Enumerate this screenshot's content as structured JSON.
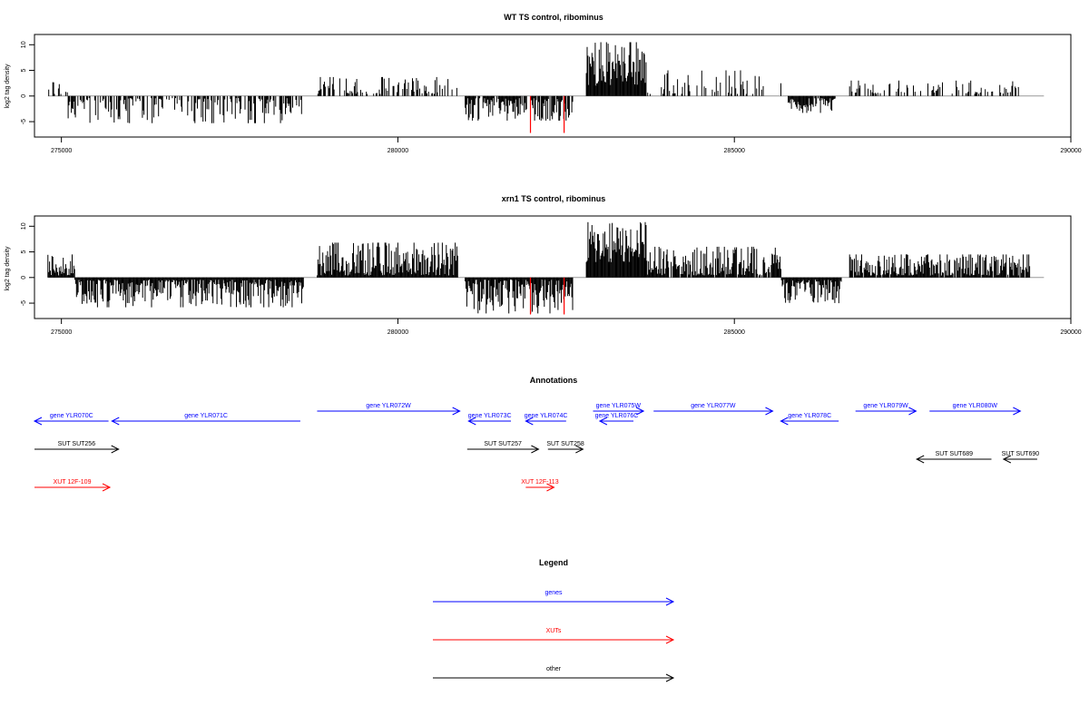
{
  "chart_data": [
    {
      "type": "bar",
      "title": "WT TS control, ribominus",
      "ylabel": "log2 tag density",
      "xlim": [
        274600,
        290000
      ],
      "ylim": [
        -8,
        12
      ],
      "x_ticks": [
        275000,
        280000,
        285000,
        290000
      ],
      "y_ticks": [
        -5,
        0,
        5,
        10
      ],
      "series_regions": [
        {
          "name": "plus",
          "start": 274800,
          "end": 275100,
          "max": 2.7,
          "density": 0.5
        },
        {
          "name": "minus",
          "start": 275100,
          "end": 278600,
          "max": -5.3,
          "density": 0.55
        },
        {
          "name": "plus",
          "start": 278800,
          "end": 280900,
          "max": 3.7,
          "density": 0.5
        },
        {
          "name": "minus",
          "start": 281000,
          "end": 282600,
          "max": -4.8,
          "density": 0.8
        },
        {
          "name": "plus",
          "start": 282800,
          "end": 283700,
          "max": 10.5,
          "density": 1.0,
          "min": 2
        },
        {
          "name": "plus",
          "start": 283700,
          "end": 285700,
          "max": 5.0,
          "density": 0.35
        },
        {
          "name": "minus",
          "start": 285800,
          "end": 286500,
          "max": -3.3,
          "density": 0.9
        },
        {
          "name": "plus",
          "start": 286700,
          "end": 289300,
          "max": 3.0,
          "density": 0.35
        }
      ],
      "highlights": [
        {
          "x": 281970,
          "y": -7.2,
          "color": "#ff0000"
        },
        {
          "x": 282470,
          "y": -7.2,
          "color": "#ff0000"
        }
      ]
    },
    {
      "type": "bar",
      "title": "xrn1 TS control, ribominus",
      "ylabel": "log2 tag density",
      "xlim": [
        274600,
        290000
      ],
      "ylim": [
        -8,
        12
      ],
      "x_ticks": [
        275000,
        280000,
        285000,
        290000
      ],
      "y_ticks": [
        -5,
        0,
        5,
        10
      ],
      "series_regions": [
        {
          "name": "plus",
          "start": 274800,
          "end": 275200,
          "max": 4.5,
          "density": 1.0
        },
        {
          "name": "minus",
          "start": 275200,
          "end": 278600,
          "max": -5.8,
          "density": 1.0
        },
        {
          "name": "plus",
          "start": 278800,
          "end": 280900,
          "max": 6.8,
          "density": 1.0
        },
        {
          "name": "minus",
          "start": 281000,
          "end": 282600,
          "max": -7.0,
          "density": 1.0
        },
        {
          "name": "plus",
          "start": 282800,
          "end": 283700,
          "max": 10.8,
          "density": 1.0,
          "min": 3
        },
        {
          "name": "plus",
          "start": 283700,
          "end": 285700,
          "max": 6.0,
          "density": 0.9
        },
        {
          "name": "minus",
          "start": 285700,
          "end": 286600,
          "max": -5.0,
          "density": 1.0
        },
        {
          "name": "plus",
          "start": 286700,
          "end": 289400,
          "max": 4.5,
          "density": 0.9
        }
      ],
      "highlights": [
        {
          "x": 281970,
          "y": -7.2,
          "color": "#ff0000"
        },
        {
          "x": 282470,
          "y": -7.2,
          "color": "#ff0000"
        }
      ]
    }
  ],
  "annotations": {
    "title": "Annotations",
    "colors": {
      "genes": "#0000ff",
      "xuts": "#ff0000",
      "other": "#000000"
    },
    "features": [
      {
        "label": "gene YLR070C",
        "start": 274600,
        "end": 275700,
        "strand": "-",
        "row": 0,
        "type": "genes"
      },
      {
        "label": "gene YLR071C",
        "start": 275750,
        "end": 278550,
        "strand": "-",
        "row": 0,
        "type": "genes"
      },
      {
        "label": "gene YLR072W",
        "start": 278800,
        "end": 280920,
        "strand": "+",
        "row": -1,
        "type": "genes"
      },
      {
        "label": "gene YLR073C",
        "start": 281050,
        "end": 281680,
        "strand": "-",
        "row": 0,
        "type": "genes"
      },
      {
        "label": "gene YLR074C",
        "start": 281900,
        "end": 282500,
        "strand": "-",
        "row": 0,
        "type": "genes"
      },
      {
        "label": "gene YLR075W",
        "start": 282900,
        "end": 283650,
        "strand": "+",
        "row": -1,
        "type": "genes"
      },
      {
        "label": "gene YLR076C",
        "start": 283000,
        "end": 283500,
        "strand": "-",
        "row": 0,
        "type": "genes"
      },
      {
        "label": "gene YLR077W",
        "start": 283800,
        "end": 285570,
        "strand": "+",
        "row": -1,
        "type": "genes"
      },
      {
        "label": "gene YLR078C",
        "start": 285690,
        "end": 286550,
        "strand": "-",
        "row": 0,
        "type": "genes"
      },
      {
        "label": "gene YLR079W",
        "start": 286800,
        "end": 287700,
        "strand": "+",
        "row": -1,
        "type": "genes"
      },
      {
        "label": "gene YLR080W",
        "start": 287900,
        "end": 289250,
        "strand": "+",
        "row": -1,
        "type": "genes"
      },
      {
        "label": "SUT SUT256",
        "start": 274600,
        "end": 275850,
        "strand": "+",
        "row": 1,
        "type": "other"
      },
      {
        "label": "SUT SUT257",
        "start": 281030,
        "end": 282090,
        "strand": "+",
        "row": 1,
        "type": "other"
      },
      {
        "label": "SUT SUT258",
        "start": 282230,
        "end": 282750,
        "strand": "+",
        "row": 1,
        "type": "other"
      },
      {
        "label": "SUT SUT689",
        "start": 287710,
        "end": 288820,
        "strand": "-",
        "row": 2,
        "type": "other"
      },
      {
        "label": "SUT SUT690",
        "start": 289000,
        "end": 289500,
        "strand": "-",
        "row": 2,
        "type": "other"
      },
      {
        "label": "XUT 12F-109",
        "start": 274600,
        "end": 275720,
        "strand": "+",
        "row": 3,
        "type": "xuts"
      },
      {
        "label": "XUT 12F-113",
        "start": 281900,
        "end": 282320,
        "strand": "+",
        "row": 3,
        "type": "xuts"
      }
    ]
  },
  "legend": {
    "title": "Legend",
    "items": [
      {
        "label": "genes",
        "color": "#0000ff"
      },
      {
        "label": "XUTs",
        "color": "#ff0000"
      },
      {
        "label": "other",
        "color": "#000000"
      }
    ]
  }
}
